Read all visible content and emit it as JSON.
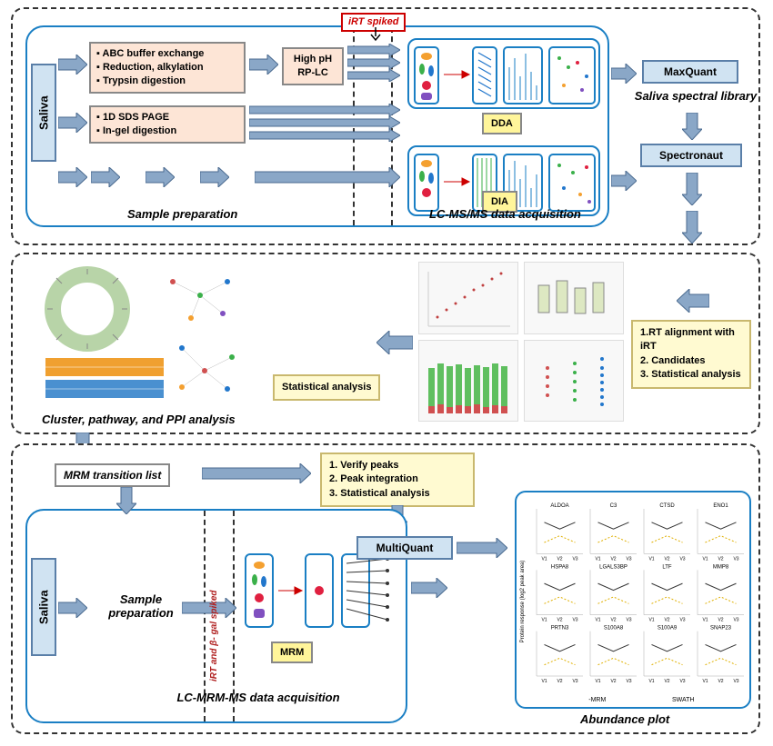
{
  "colors": {
    "panel_border": "#333333",
    "inner_border": "#1a7fc4",
    "peach_bg": "#fde5d6",
    "blue_bg": "#d0e3f2",
    "yellow_bg": "#fff59a",
    "cream_bg": "#fffad1",
    "arrow_fill": "#8aa7c7",
    "arrow_stroke": "#4a6a8f",
    "red_text": "#b02020"
  },
  "top_label": "iRT spiked",
  "saliva": "Saliva",
  "prep_a": {
    "lines": [
      "▪ ABC buffer exchange",
      "▪ Reduction, alkylation",
      "▪ Trypsin digestion"
    ]
  },
  "prep_b": {
    "lines": [
      "▪ 1D SDS PAGE",
      "▪ In-gel digestion"
    ]
  },
  "high_ph": "High pH RP-LC",
  "dda": "DDA",
  "dia": "DIA",
  "sample_prep": "Sample preparation",
  "lcms_acq": "LC-MS/MS data acquisition",
  "maxquant": "MaxQuant",
  "library": "Saliva spectral library",
  "spectronaut": "Spectronaut",
  "rt_steps": {
    "l1": "1.RT alignment with iRT",
    "l2": "2. Candidates",
    "l3": "3. Statistical analysis"
  },
  "stat_analysis": "Statistical analysis",
  "cluster": "Cluster, pathway, and PPI analysis",
  "mrm_list": "MRM transition list",
  "verify_steps": {
    "l1": "1. Verify peaks",
    "l2": "2. Peak integration",
    "l3": "3. Statistical analysis"
  },
  "multiquant": "MultiQuant",
  "saliva2": "Saliva",
  "sample_prep2": "Sample preparation",
  "spike2": "iRT and β- gal spiked",
  "mrm": "MRM",
  "lc_mrm": "LC-MRM-MS data acquisition",
  "abundance": "Abundance plot",
  "abundance_proteins": [
    "ALDOA",
    "C3",
    "CTSD",
    "ENO1",
    "HSPA8",
    "LGALS3BP",
    "LTF",
    "MMP8",
    "PRTN3",
    "S100A8",
    "S100A9",
    "SNAP23"
  ],
  "abundance_xtitles": [
    "-MRM",
    "SWATH"
  ]
}
